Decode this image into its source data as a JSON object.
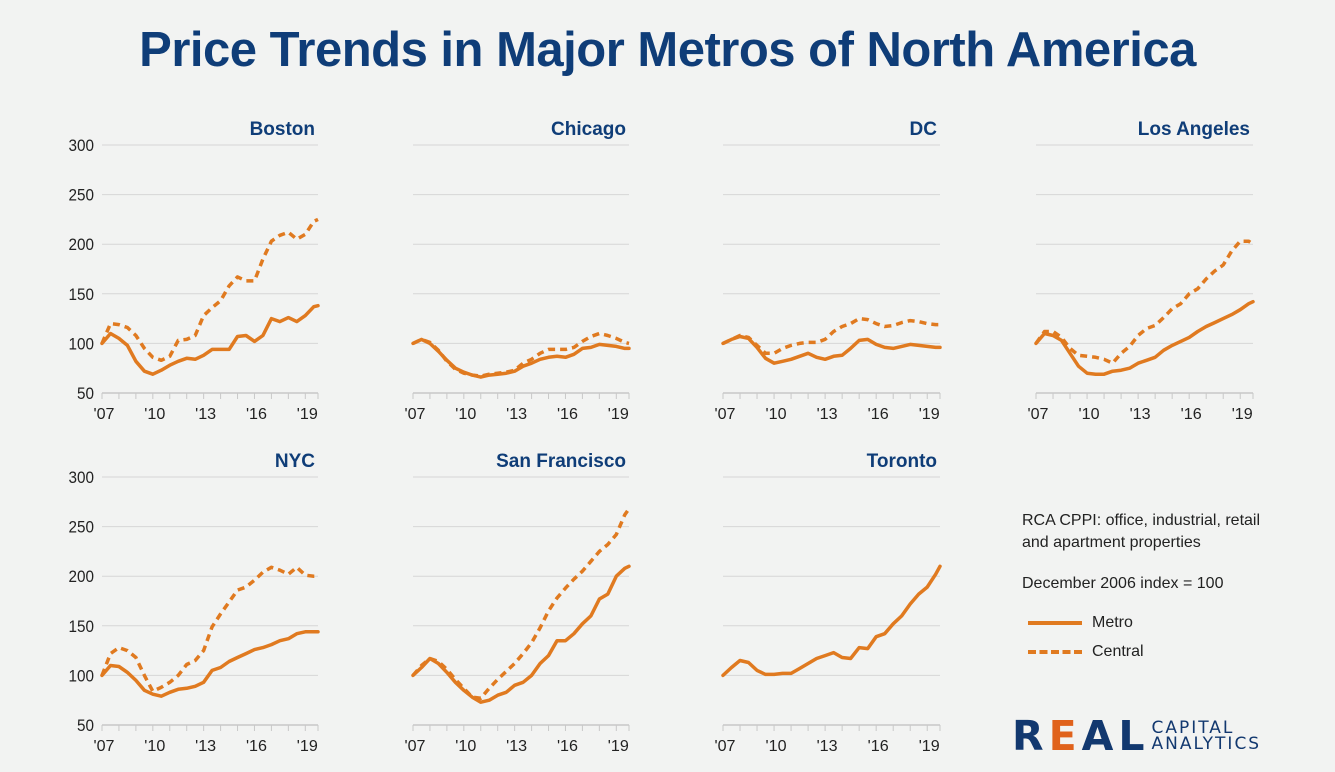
{
  "title": "Price Trends in Major Metros of North America",
  "notes": {
    "line1": "RCA CPPI: office, industrial, retail",
    "line2": "and apartment properties",
    "line3": "December 2006 index = 100"
  },
  "legend": [
    {
      "label": "Metro",
      "style": "solid"
    },
    {
      "label": "Central",
      "style": "dashed"
    }
  ],
  "colors": {
    "series": "#e07a20",
    "title": "#0f3d78",
    "grid": "#d6d6d6",
    "background": "#f2f3f2"
  },
  "logo": {
    "word": "REAL",
    "line1": "CAPITAL",
    "line2": "ANALYTICS"
  },
  "chart_data": [
    {
      "type": "line",
      "title": "Boston",
      "ylim": [
        50,
        300
      ],
      "yticks": [
        300,
        250,
        200,
        150,
        100,
        50
      ],
      "xticks": [
        "'07",
        "'10",
        "'13",
        "'16",
        "'19"
      ],
      "xtick_years": [
        2007,
        2010,
        2013,
        2016,
        2019
      ],
      "grid": true,
      "x": [
        2007,
        2007.5,
        2008,
        2008.5,
        2009,
        2009.5,
        2010,
        2010.5,
        2011,
        2011.5,
        2012,
        2012.5,
        2013,
        2013.5,
        2014,
        2014.5,
        2015,
        2015.5,
        2016,
        2016.5,
        2017,
        2017.5,
        2018,
        2018.5,
        2019,
        2019.5,
        2019.75
      ],
      "series": [
        {
          "name": "Metro",
          "values": [
            100,
            110,
            105,
            98,
            82,
            72,
            69,
            73,
            78,
            82,
            85,
            84,
            88,
            94,
            94,
            94,
            107,
            108,
            102,
            108,
            125,
            122,
            126,
            122,
            128,
            137,
            138
          ]
        },
        {
          "name": "Central",
          "values": [
            100,
            120,
            119,
            116,
            108,
            95,
            86,
            83,
            87,
            103,
            104,
            108,
            128,
            136,
            143,
            158,
            167,
            163,
            163,
            185,
            203,
            209,
            212,
            205,
            210,
            223,
            225
          ]
        }
      ]
    },
    {
      "type": "line",
      "title": "Chicago",
      "ylim": [
        50,
        300
      ],
      "yticks": [
        300,
        250,
        200,
        150,
        100,
        50
      ],
      "xticks": [
        "'07",
        "'10",
        "'13",
        "'16",
        "'19"
      ],
      "xtick_years": [
        2007,
        2010,
        2013,
        2016,
        2019
      ],
      "grid": true,
      "x": [
        2007,
        2007.5,
        2008,
        2008.5,
        2009,
        2009.5,
        2010,
        2010.5,
        2011,
        2011.5,
        2012,
        2012.5,
        2013,
        2013.5,
        2014,
        2014.5,
        2015,
        2015.5,
        2016,
        2016.5,
        2017,
        2017.5,
        2018,
        2018.5,
        2019,
        2019.5,
        2019.75
      ],
      "series": [
        {
          "name": "Metro",
          "values": [
            100,
            104,
            100,
            92,
            83,
            75,
            71,
            68,
            66,
            68,
            69,
            70,
            72,
            77,
            80,
            84,
            86,
            87,
            86,
            89,
            95,
            96,
            99,
            98,
            97,
            95,
            95
          ]
        },
        {
          "name": "Central",
          "values": [
            100,
            104,
            101,
            93,
            82,
            74,
            70,
            68,
            67,
            69,
            70,
            71,
            73,
            80,
            84,
            90,
            94,
            94,
            94,
            96,
            102,
            107,
            110,
            108,
            105,
            101,
            100
          ]
        }
      ]
    },
    {
      "type": "line",
      "title": "DC",
      "ylim": [
        50,
        300
      ],
      "yticks": [
        300,
        250,
        200,
        150,
        100,
        50
      ],
      "xticks": [
        "'07",
        "'10",
        "'13",
        "'16",
        "'19"
      ],
      "xtick_years": [
        2007,
        2010,
        2013,
        2016,
        2019
      ],
      "grid": true,
      "x": [
        2007,
        2007.5,
        2008,
        2008.5,
        2009,
        2009.5,
        2010,
        2010.5,
        2011,
        2011.5,
        2012,
        2012.5,
        2013,
        2013.5,
        2014,
        2014.5,
        2015,
        2015.5,
        2016,
        2016.5,
        2017,
        2017.5,
        2018,
        2018.5,
        2019,
        2019.5,
        2019.75
      ],
      "series": [
        {
          "name": "Metro",
          "values": [
            100,
            104,
            107,
            105,
            96,
            85,
            80,
            82,
            84,
            87,
            90,
            86,
            84,
            87,
            88,
            95,
            103,
            104,
            99,
            96,
            95,
            97,
            99,
            98,
            97,
            96,
            96
          ]
        },
        {
          "name": "Central",
          "values": [
            100,
            104,
            108,
            106,
            98,
            90,
            90,
            95,
            98,
            100,
            101,
            101,
            104,
            112,
            117,
            120,
            125,
            124,
            120,
            117,
            118,
            121,
            123,
            122,
            120,
            119,
            119
          ]
        }
      ]
    },
    {
      "type": "line",
      "title": "Los Angeles",
      "ylim": [
        50,
        300
      ],
      "yticks": [
        300,
        250,
        200,
        150,
        100,
        50
      ],
      "xticks": [
        "'07",
        "'10",
        "'13",
        "'16",
        "'19"
      ],
      "xtick_years": [
        2007,
        2010,
        2013,
        2016,
        2019
      ],
      "grid": true,
      "x": [
        2007,
        2007.5,
        2008,
        2008.5,
        2009,
        2009.5,
        2010,
        2010.5,
        2011,
        2011.5,
        2012,
        2012.5,
        2013,
        2013.5,
        2014,
        2014.5,
        2015,
        2015.5,
        2016,
        2016.5,
        2017,
        2017.5,
        2018,
        2018.5,
        2019,
        2019.5,
        2019.75
      ],
      "series": [
        {
          "name": "Metro",
          "values": [
            100,
            110,
            108,
            103,
            90,
            77,
            70,
            69,
            69,
            72,
            73,
            75,
            80,
            83,
            86,
            93,
            98,
            102,
            106,
            112,
            117,
            121,
            125,
            129,
            134,
            140,
            142
          ]
        },
        {
          "name": "Central",
          "values": [
            100,
            112,
            112,
            106,
            95,
            88,
            87,
            86,
            84,
            80,
            90,
            97,
            108,
            115,
            118,
            126,
            135,
            140,
            150,
            155,
            165,
            173,
            179,
            193,
            203,
            203,
            200
          ]
        }
      ]
    },
    {
      "type": "line",
      "title": "NYC",
      "ylim": [
        50,
        300
      ],
      "yticks": [
        300,
        250,
        200,
        150,
        100,
        50
      ],
      "xticks": [
        "'07",
        "'10",
        "'13",
        "'16",
        "'19"
      ],
      "xtick_years": [
        2007,
        2010,
        2013,
        2016,
        2019
      ],
      "grid": true,
      "x": [
        2007,
        2007.5,
        2008,
        2008.5,
        2009,
        2009.5,
        2010,
        2010.5,
        2011,
        2011.5,
        2012,
        2012.5,
        2013,
        2013.5,
        2014,
        2014.5,
        2015,
        2015.5,
        2016,
        2016.5,
        2017,
        2017.5,
        2018,
        2018.5,
        2019,
        2019.5,
        2019.75
      ],
      "series": [
        {
          "name": "Metro",
          "values": [
            100,
            110,
            109,
            103,
            95,
            85,
            81,
            79,
            83,
            86,
            87,
            89,
            93,
            105,
            108,
            114,
            118,
            122,
            126,
            128,
            131,
            135,
            137,
            142,
            144,
            144,
            144
          ]
        },
        {
          "name": "Central",
          "values": [
            100,
            122,
            128,
            125,
            118,
            100,
            84,
            88,
            93,
            100,
            111,
            115,
            125,
            149,
            162,
            174,
            186,
            189,
            196,
            204,
            209,
            206,
            202,
            209,
            201,
            200,
            200
          ]
        }
      ]
    },
    {
      "type": "line",
      "title": "San Francisco",
      "ylim": [
        50,
        300
      ],
      "yticks": [
        300,
        250,
        200,
        150,
        100,
        50
      ],
      "xticks": [
        "'07",
        "'10",
        "'13",
        "'16",
        "'19"
      ],
      "xtick_years": [
        2007,
        2010,
        2013,
        2016,
        2019
      ],
      "grid": true,
      "x": [
        2007,
        2007.5,
        2008,
        2008.5,
        2009,
        2009.5,
        2010,
        2010.5,
        2011,
        2011.5,
        2012,
        2012.5,
        2013,
        2013.5,
        2014,
        2014.5,
        2015,
        2015.5,
        2016,
        2016.5,
        2017,
        2017.5,
        2018,
        2018.5,
        2019,
        2019.5,
        2019.75
      ],
      "series": [
        {
          "name": "Metro",
          "values": [
            100,
            108,
            117,
            112,
            103,
            93,
            85,
            78,
            73,
            75,
            80,
            83,
            90,
            93,
            100,
            112,
            120,
            135,
            135,
            142,
            152,
            160,
            177,
            182,
            200,
            208,
            210
          ]
        },
        {
          "name": "Central",
          "values": [
            100,
            110,
            117,
            114,
            106,
            96,
            87,
            78,
            77,
            87,
            96,
            104,
            112,
            122,
            133,
            148,
            165,
            178,
            188,
            197,
            205,
            215,
            225,
            232,
            242,
            262,
            268
          ]
        }
      ]
    },
    {
      "type": "line",
      "title": "Toronto",
      "ylim": [
        50,
        300
      ],
      "yticks": [
        300,
        250,
        200,
        150,
        100,
        50
      ],
      "xticks": [
        "'07",
        "'10",
        "'13",
        "'16",
        "'19"
      ],
      "xtick_years": [
        2007,
        2010,
        2013,
        2016,
        2019
      ],
      "grid": true,
      "x": [
        2007,
        2007.5,
        2008,
        2008.5,
        2009,
        2009.5,
        2010,
        2010.5,
        2011,
        2011.5,
        2012,
        2012.5,
        2013,
        2013.5,
        2014,
        2014.5,
        2015,
        2015.5,
        2016,
        2016.5,
        2017,
        2017.5,
        2018,
        2018.5,
        2019,
        2019.5,
        2019.75
      ],
      "series": [
        {
          "name": "Metro",
          "values": [
            100,
            108,
            115,
            113,
            105,
            101,
            101,
            102,
            102,
            107,
            112,
            117,
            120,
            123,
            118,
            117,
            128,
            127,
            139,
            142,
            152,
            160,
            172,
            182,
            189,
            202,
            210
          ]
        }
      ]
    }
  ]
}
